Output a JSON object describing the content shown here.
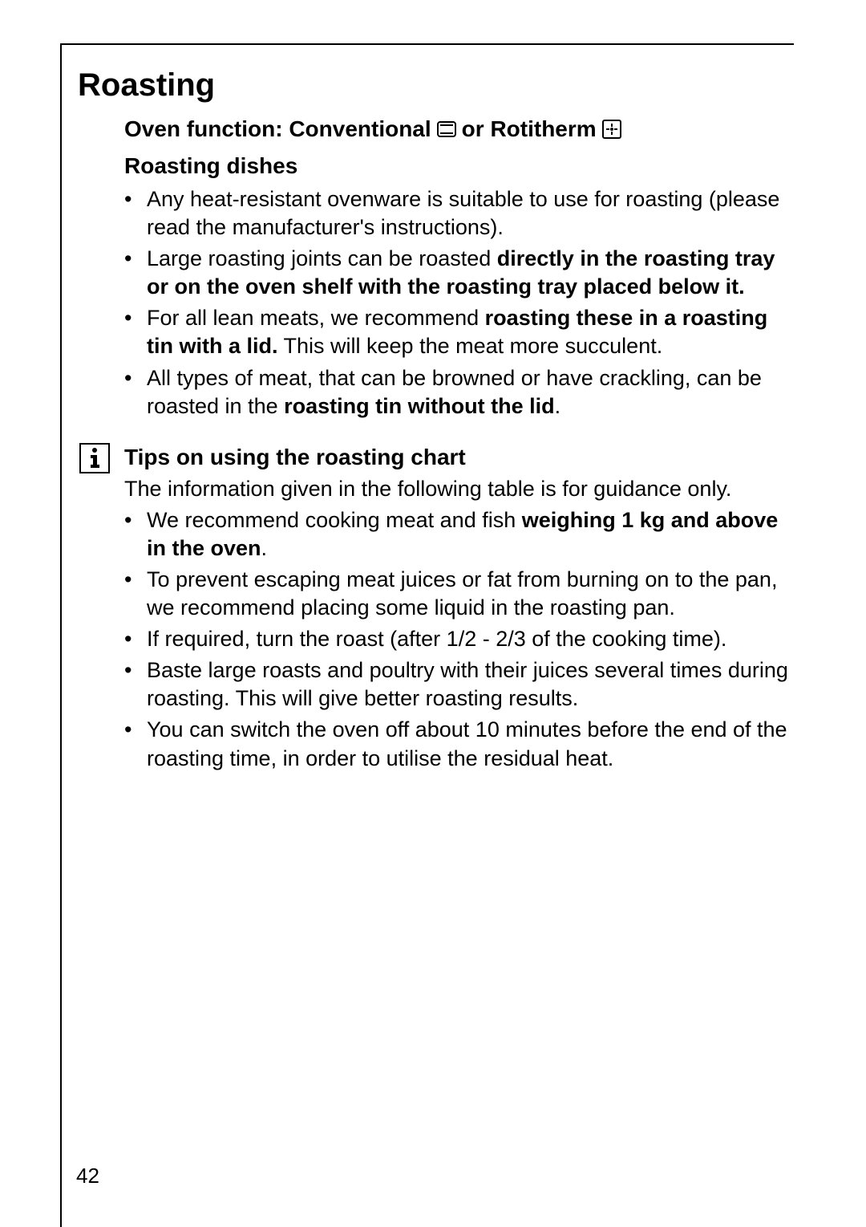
{
  "page": {
    "number": "42",
    "fonts": {
      "body_size": 27,
      "title_size": 40,
      "subtitle_size": 28
    },
    "colors": {
      "text": "#000000",
      "background": "#ffffff",
      "border": "#000000"
    }
  },
  "main_title": "Roasting",
  "subtitle_parts": {
    "prefix": "Oven function: Conventional",
    "middle": "or Rotitherm"
  },
  "section1": {
    "heading": "Roasting dishes",
    "bullets": [
      {
        "text_parts": [
          {
            "text": "Any heat-resistant ovenware is suitable to use for roasting (please read the manufacturer's instructions).",
            "bold": false
          }
        ]
      },
      {
        "text_parts": [
          {
            "text": "Large roasting joints can be roasted ",
            "bold": false
          },
          {
            "text": "directly in the roasting tray or on the oven shelf with the roasting tray placed below it.",
            "bold": true
          }
        ]
      },
      {
        "text_parts": [
          {
            "text": "For all lean meats, we recommend ",
            "bold": false
          },
          {
            "text": "roasting these in a roasting tin with a lid.",
            "bold": true
          },
          {
            "text": " This will keep the meat more succulent.",
            "bold": false
          }
        ]
      },
      {
        "text_parts": [
          {
            "text": "All types of meat, that can be browned or have crackling, can be roasted in the ",
            "bold": false
          },
          {
            "text": "roasting tin without the lid",
            "bold": true
          },
          {
            "text": ".",
            "bold": false
          }
        ]
      }
    ]
  },
  "section2": {
    "heading": "Tips on using the roasting chart",
    "intro": "The information given in the following table is for guidance only.",
    "bullets": [
      {
        "text_parts": [
          {
            "text": "We recommend cooking meat and fish ",
            "bold": false
          },
          {
            "text": "weighing 1 kg and above in the oven",
            "bold": true
          },
          {
            "text": ".",
            "bold": false
          }
        ]
      },
      {
        "text_parts": [
          {
            "text": "To prevent escaping meat juices or fat from burning on to the pan, we recommend placing some liquid in the roasting pan.",
            "bold": false
          }
        ]
      },
      {
        "text_parts": [
          {
            "text": "If required, turn the roast (after 1/2 - 2/3 of the cooking time).",
            "bold": false
          }
        ]
      },
      {
        "text_parts": [
          {
            "text": "Baste large roasts and poultry with their juices several times during roasting. This will give better roasting results.",
            "bold": false
          }
        ]
      },
      {
        "text_parts": [
          {
            "text": "You can switch the oven off about 10 minutes before the end of the roasting time, in order to utilise the residual heat.",
            "bold": false
          }
        ]
      }
    ]
  }
}
